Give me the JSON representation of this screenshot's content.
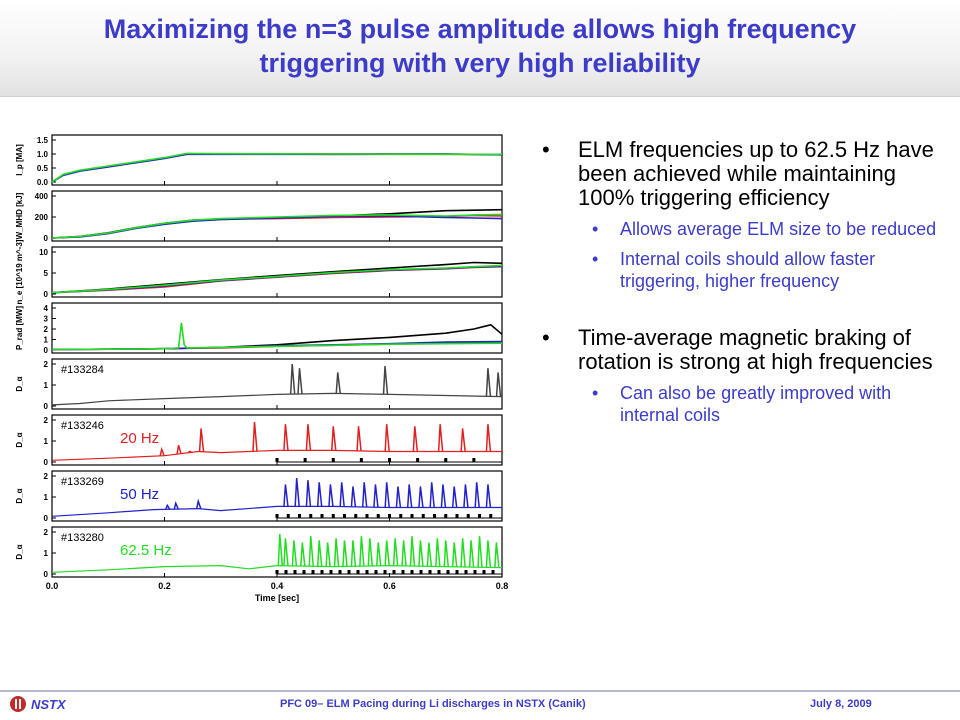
{
  "slide": {
    "title_line1": "Maximizing the n=3 pulse amplitude allows high frequency",
    "title_line2": "triggering with very high reliability"
  },
  "bullets": [
    {
      "text": "ELM frequencies up to 62.5 Hz have been achieved while maintaining 100% triggering efficiency",
      "sub": [
        "Allows average ELM size to be reduced",
        "Internal coils should allow faster triggering, higher frequency"
      ]
    },
    {
      "text": "Time-average magnetic braking of rotation is strong at high frequencies",
      "sub": [
        "Can also be greatly improved with internal coils"
      ]
    }
  ],
  "footer": {
    "logo_text": "NSTX",
    "center": "PFC 09– ELM Pacing during Li discharges in NSTX (Canik)",
    "date": "July 8, 2009"
  },
  "colors": {
    "title": "#3c3cc8",
    "black": "#000000",
    "red": "#e02020",
    "blue": "#2222cc",
    "green": "#22dd22",
    "gray": "#444444"
  },
  "chart_data": {
    "type": "line",
    "xlabel": "Time [sec]",
    "x_ticks": [
      "0.0",
      "0.2",
      "0.4",
      "0.6",
      "0.8"
    ],
    "xlim": [
      0.0,
      0.8
    ],
    "panels": [
      {
        "ylabel": "I_p [MA]",
        "yticks": [
          "1.5",
          "1.0",
          "0.5",
          "0.0"
        ],
        "ylim": [
          0,
          1.5
        ],
        "series": [
          {
            "color": "black",
            "x": [
              0.0,
              0.02,
              0.05,
              0.1,
              0.15,
              0.2,
              0.24,
              0.3,
              0.5,
              0.7,
              0.8
            ],
            "y": [
              0.0,
              0.25,
              0.4,
              0.55,
              0.7,
              0.85,
              1.0,
              1.0,
              1.0,
              1.0,
              0.98
            ]
          },
          {
            "color": "red",
            "x": [
              0.0,
              0.02,
              0.05,
              0.1,
              0.15,
              0.2,
              0.24,
              0.3,
              0.5,
              0.7,
              0.8
            ],
            "y": [
              0.0,
              0.26,
              0.41,
              0.56,
              0.71,
              0.86,
              1.01,
              1.0,
              0.99,
              0.99,
              0.98
            ]
          },
          {
            "color": "blue",
            "x": [
              0.0,
              0.02,
              0.05,
              0.1,
              0.15,
              0.2,
              0.24,
              0.3,
              0.5,
              0.7,
              0.8
            ],
            "y": [
              0.0,
              0.24,
              0.39,
              0.54,
              0.69,
              0.84,
              0.99,
              0.99,
              0.99,
              1.0,
              0.97
            ]
          },
          {
            "color": "green",
            "x": [
              0.0,
              0.02,
              0.05,
              0.1,
              0.15,
              0.2,
              0.24,
              0.3,
              0.5,
              0.7,
              0.8
            ],
            "y": [
              0.0,
              0.27,
              0.42,
              0.57,
              0.72,
              0.87,
              1.02,
              1.01,
              1.0,
              0.99,
              0.99
            ]
          }
        ]
      },
      {
        "ylabel": "W_MHD [kJ]",
        "yticks": [
          "400",
          "200",
          "0"
        ],
        "ylim": [
          0,
          400
        ],
        "series": [
          {
            "color": "black",
            "x": [
              0.0,
              0.05,
              0.1,
              0.15,
              0.2,
              0.25,
              0.3,
              0.4,
              0.5,
              0.6,
              0.7,
              0.75,
              0.8
            ],
            "y": [
              0,
              15,
              50,
              100,
              140,
              170,
              180,
              195,
              210,
              230,
              260,
              265,
              270
            ]
          },
          {
            "color": "red",
            "x": [
              0.0,
              0.05,
              0.1,
              0.15,
              0.2,
              0.25,
              0.3,
              0.4,
              0.5,
              0.6,
              0.7,
              0.75,
              0.8
            ],
            "y": [
              0,
              12,
              45,
              95,
              135,
              165,
              180,
              185,
              195,
              200,
              205,
              215,
              210
            ]
          },
          {
            "color": "blue",
            "x": [
              0.0,
              0.05,
              0.1,
              0.15,
              0.2,
              0.25,
              0.3,
              0.4,
              0.5,
              0.6,
              0.7,
              0.75,
              0.8
            ],
            "y": [
              0,
              10,
              42,
              92,
              130,
              160,
              175,
              190,
              205,
              210,
              195,
              190,
              185
            ]
          },
          {
            "color": "green",
            "x": [
              0.0,
              0.05,
              0.1,
              0.15,
              0.2,
              0.25,
              0.3,
              0.4,
              0.5,
              0.6,
              0.7,
              0.75,
              0.8
            ],
            "y": [
              0,
              14,
              48,
              98,
              140,
              170,
              185,
              200,
              215,
              220,
              210,
              220,
              225
            ]
          }
        ]
      },
      {
        "ylabel": "n_e [10^19 m^-3]",
        "yticks": [
          "10",
          "5",
          "0"
        ],
        "ylim": [
          0,
          10
        ],
        "series": [
          {
            "color": "black",
            "x": [
              0.0,
              0.1,
              0.2,
              0.3,
              0.4,
              0.5,
              0.6,
              0.7,
              0.75,
              0.8
            ],
            "y": [
              0.3,
              1.2,
              2.3,
              3.4,
              4.4,
              5.3,
              6.2,
              7.0,
              7.5,
              7.3
            ]
          },
          {
            "color": "red",
            "x": [
              0.0,
              0.1,
              0.2,
              0.3,
              0.4,
              0.5,
              0.6,
              0.7,
              0.75,
              0.8
            ],
            "y": [
              0.3,
              0.9,
              1.7,
              3.1,
              4.0,
              4.9,
              5.6,
              6.0,
              6.3,
              6.5
            ]
          },
          {
            "color": "blue",
            "x": [
              0.0,
              0.1,
              0.2,
              0.3,
              0.4,
              0.5,
              0.6,
              0.7,
              0.75,
              0.8
            ],
            "y": [
              0.3,
              1.0,
              1.9,
              3.2,
              4.1,
              5.0,
              5.7,
              6.1,
              6.4,
              6.6
            ]
          },
          {
            "color": "green",
            "x": [
              0.0,
              0.1,
              0.2,
              0.3,
              0.4,
              0.5,
              0.6,
              0.7,
              0.75,
              0.8
            ],
            "y": [
              0.3,
              1.1,
              2.1,
              3.3,
              4.2,
              5.1,
              5.8,
              6.2,
              6.5,
              6.8
            ]
          }
        ]
      },
      {
        "ylabel": "P_rad [MW]",
        "yticks": [
          "4",
          "3",
          "2",
          "1",
          "0"
        ],
        "ylim": [
          0,
          4
        ],
        "series": [
          {
            "color": "black",
            "x": [
              0.0,
              0.1,
              0.2,
              0.3,
              0.4,
              0.5,
              0.6,
              0.7,
              0.75,
              0.78,
              0.8
            ],
            "y": [
              0.05,
              0.08,
              0.12,
              0.25,
              0.5,
              0.9,
              1.2,
              1.6,
              2.0,
              2.4,
              1.5
            ]
          },
          {
            "color": "red",
            "x": [
              0.0,
              0.1,
              0.2,
              0.3,
              0.4,
              0.5,
              0.6,
              0.7,
              0.8
            ],
            "y": [
              0.05,
              0.08,
              0.12,
              0.2,
              0.35,
              0.45,
              0.55,
              0.65,
              0.7
            ]
          },
          {
            "color": "blue",
            "x": [
              0.0,
              0.1,
              0.2,
              0.3,
              0.4,
              0.5,
              0.6,
              0.7,
              0.8
            ],
            "y": [
              0.05,
              0.08,
              0.12,
              0.25,
              0.4,
              0.5,
              0.6,
              0.75,
              0.8
            ]
          },
          {
            "color": "green",
            "x": [
              0.0,
              0.1,
              0.2,
              0.225,
              0.23,
              0.235,
              0.24,
              0.3,
              0.4,
              0.5,
              0.6,
              0.7,
              0.8
            ],
            "y": [
              0.05,
              0.08,
              0.12,
              0.2,
              2.6,
              0.5,
              0.2,
              0.25,
              0.35,
              0.45,
              0.55,
              0.6,
              0.65
            ]
          }
        ]
      },
      {
        "ylabel": "D_α",
        "yticks": [
          "2",
          "1",
          "0"
        ],
        "ylim": [
          0,
          2
        ],
        "shot": "#133284",
        "color": "gray",
        "baseline": [
          [
            0.0,
            0.05
          ],
          [
            0.05,
            0.12
          ],
          [
            0.1,
            0.25
          ],
          [
            0.2,
            0.35
          ],
          [
            0.3,
            0.45
          ],
          [
            0.4,
            0.55
          ],
          [
            0.5,
            0.6
          ],
          [
            0.6,
            0.55
          ],
          [
            0.7,
            0.5
          ],
          [
            0.8,
            0.45
          ]
        ],
        "spikes": [
          [
            0.427,
            2.0
          ],
          [
            0.44,
            1.8
          ],
          [
            0.508,
            1.6
          ],
          [
            0.592,
            1.9
          ],
          [
            0.775,
            1.8
          ],
          [
            0.793,
            1.6
          ]
        ]
      },
      {
        "ylabel": "D_α",
        "yticks": [
          "2",
          "1",
          "0"
        ],
        "ylim": [
          0,
          2
        ],
        "shot": "#133246",
        "label": "20 Hz",
        "color": "red",
        "baseline": [
          [
            0.0,
            0.08
          ],
          [
            0.1,
            0.18
          ],
          [
            0.2,
            0.3
          ],
          [
            0.26,
            0.5
          ],
          [
            0.3,
            0.45
          ],
          [
            0.4,
            0.55
          ],
          [
            0.5,
            0.55
          ],
          [
            0.6,
            0.5
          ],
          [
            0.7,
            0.5
          ],
          [
            0.8,
            0.5
          ]
        ],
        "spikes": [
          [
            0.195,
            0.6
          ],
          [
            0.225,
            0.8
          ],
          [
            0.245,
            0.5
          ],
          [
            0.265,
            1.6
          ],
          [
            0.36,
            1.9
          ],
          [
            0.415,
            1.8
          ],
          [
            0.455,
            1.8
          ],
          [
            0.5,
            1.7
          ],
          [
            0.545,
            1.7
          ],
          [
            0.595,
            1.8
          ],
          [
            0.645,
            1.7
          ],
          [
            0.69,
            1.8
          ],
          [
            0.73,
            1.6
          ],
          [
            0.775,
            1.8
          ]
        ],
        "triggers": [
          0.4,
          0.45,
          0.5,
          0.55,
          0.6,
          0.65,
          0.7,
          0.75
        ]
      },
      {
        "ylabel": "D_α",
        "yticks": [
          "2",
          "1",
          "0"
        ],
        "ylim": [
          0,
          2
        ],
        "shot": "#133269",
        "label": "50 Hz",
        "color": "blue",
        "baseline": [
          [
            0.0,
            0.08
          ],
          [
            0.1,
            0.25
          ],
          [
            0.18,
            0.4
          ],
          [
            0.26,
            0.45
          ],
          [
            0.3,
            0.35
          ],
          [
            0.4,
            0.55
          ],
          [
            0.5,
            0.55
          ],
          [
            0.6,
            0.5
          ],
          [
            0.7,
            0.5
          ],
          [
            0.8,
            0.5
          ]
        ],
        "spikes": [
          [
            0.205,
            0.6
          ],
          [
            0.22,
            0.7
          ],
          [
            0.26,
            0.8
          ],
          [
            0.415,
            1.6
          ],
          [
            0.435,
            1.9
          ],
          [
            0.455,
            1.8
          ],
          [
            0.475,
            1.7
          ],
          [
            0.495,
            1.6
          ],
          [
            0.515,
            1.7
          ],
          [
            0.535,
            1.5
          ],
          [
            0.555,
            1.7
          ],
          [
            0.575,
            1.6
          ],
          [
            0.595,
            1.7
          ],
          [
            0.615,
            1.5
          ],
          [
            0.635,
            1.6
          ],
          [
            0.655,
            1.5
          ],
          [
            0.675,
            1.7
          ],
          [
            0.695,
            1.6
          ],
          [
            0.715,
            1.5
          ],
          [
            0.735,
            1.6
          ],
          [
            0.755,
            1.7
          ],
          [
            0.775,
            1.6
          ]
        ],
        "triggers": [
          0.4,
          0.42,
          0.44,
          0.46,
          0.48,
          0.5,
          0.52,
          0.54,
          0.56,
          0.58,
          0.6,
          0.62,
          0.64,
          0.66,
          0.68,
          0.7,
          0.72,
          0.74,
          0.76,
          0.78
        ]
      },
      {
        "ylabel": "D_α",
        "yticks": [
          "2",
          "1",
          "0"
        ],
        "ylim": [
          0,
          2
        ],
        "shot": "#133280",
        "label": "62.5 Hz",
        "color": "green",
        "baseline": [
          [
            0.0,
            0.08
          ],
          [
            0.1,
            0.2
          ],
          [
            0.2,
            0.35
          ],
          [
            0.3,
            0.4
          ],
          [
            0.35,
            0.25
          ],
          [
            0.4,
            0.4
          ],
          [
            0.5,
            0.35
          ],
          [
            0.6,
            0.4
          ],
          [
            0.7,
            0.35
          ],
          [
            0.8,
            0.3
          ]
        ],
        "spikes": [
          [
            0.405,
            1.9
          ],
          [
            0.415,
            1.7
          ],
          [
            0.43,
            1.6
          ],
          [
            0.445,
            1.5
          ],
          [
            0.46,
            1.8
          ],
          [
            0.475,
            1.6
          ],
          [
            0.49,
            1.5
          ],
          [
            0.505,
            1.7
          ],
          [
            0.52,
            1.6
          ],
          [
            0.535,
            1.6
          ],
          [
            0.55,
            1.8
          ],
          [
            0.565,
            1.7
          ],
          [
            0.58,
            1.5
          ],
          [
            0.595,
            1.6
          ],
          [
            0.61,
            1.7
          ],
          [
            0.625,
            1.6
          ],
          [
            0.64,
            1.8
          ],
          [
            0.655,
            1.6
          ],
          [
            0.67,
            1.5
          ],
          [
            0.685,
            1.7
          ],
          [
            0.7,
            1.6
          ],
          [
            0.715,
            1.5
          ],
          [
            0.73,
            1.7
          ],
          [
            0.745,
            1.6
          ],
          [
            0.76,
            1.8
          ],
          [
            0.775,
            1.6
          ],
          [
            0.79,
            1.5
          ]
        ],
        "triggers": [
          0.4,
          0.416,
          0.432,
          0.448,
          0.464,
          0.48,
          0.496,
          0.512,
          0.528,
          0.544,
          0.56,
          0.576,
          0.592,
          0.608,
          0.624,
          0.64,
          0.656,
          0.672,
          0.688,
          0.704,
          0.72,
          0.736,
          0.752,
          0.768,
          0.784
        ]
      }
    ]
  }
}
